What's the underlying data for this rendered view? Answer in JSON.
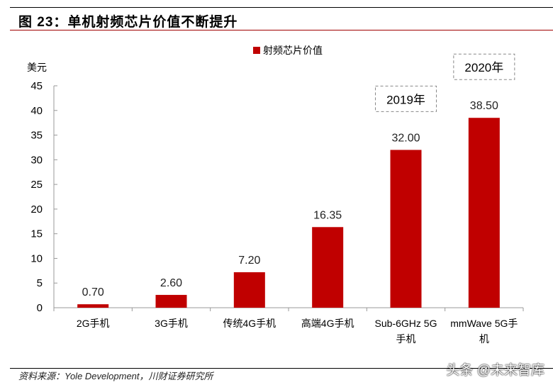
{
  "title": "图 23：单机射频芯片价值不断提升",
  "source": "资料来源：Yole Development，川财证券研究所",
  "watermark": "头条 @未来智库",
  "colors": {
    "bar": "#c00000"
  },
  "chart_data": {
    "type": "bar",
    "ylabel": "美元",
    "ylim": [
      0,
      45
    ],
    "yticks": [
      "0",
      "5",
      "10",
      "15",
      "20",
      "25",
      "30",
      "35",
      "40",
      "45"
    ],
    "categories": [
      [
        "2G手机"
      ],
      [
        "3G手机"
      ],
      [
        "传统4G手机"
      ],
      [
        "高端4G手机"
      ],
      [
        "Sub-6GHz 5G",
        "手机"
      ],
      [
        "mmWave 5G手",
        "机"
      ]
    ],
    "series": [
      {
        "name": "射频芯片价值",
        "values": [
          0.7,
          2.6,
          7.2,
          16.35,
          32.0,
          38.5
        ]
      }
    ],
    "data_labels": [
      "0.70",
      "2.60",
      "7.20",
      "16.35",
      "32.00",
      "38.50"
    ],
    "legend": "top",
    "grid": false,
    "annotations": [
      {
        "category_index": 4,
        "text": "2019年"
      },
      {
        "category_index": 5,
        "text": "2020年"
      }
    ]
  }
}
